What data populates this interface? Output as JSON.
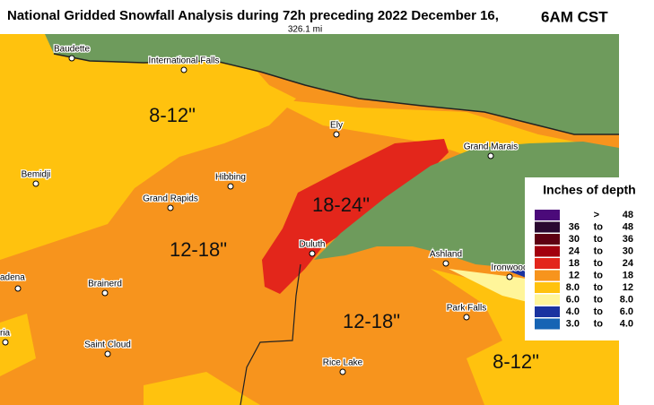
{
  "header": {
    "title": "National Gridded Snowfall Analysis during 72h preceding 2022 December 16,",
    "time": "6AM CST",
    "scale": "326.1 mi"
  },
  "cities": [
    "Baudette",
    "International Falls",
    "Ely",
    "Grand Marais",
    "Bemidji",
    "Hibbing",
    "Grand Rapids",
    "Duluth",
    "Ashland",
    "Ironwood",
    "adena",
    "Brainerd",
    "ria",
    "Park Falls",
    "Saint Cloud",
    "Rice Lake"
  ],
  "regions": [
    "8-12\"",
    "18-24\"",
    "12-18\"",
    "12-18\"",
    "8-12\""
  ],
  "legend": {
    "title": "Inches of depth",
    "rows": [
      {
        "parts": [
          ">",
          "48"
        ],
        "color": "#4b0a7a"
      },
      {
        "parts": [
          "36",
          "to",
          "48"
        ],
        "color": "#2a0830"
      },
      {
        "parts": [
          "30",
          "to",
          "36"
        ],
        "color": "#5e0012"
      },
      {
        "parts": [
          "24",
          "to",
          "30"
        ],
        "color": "#a2000e"
      },
      {
        "parts": [
          "18",
          "to",
          "24"
        ],
        "color": "#e3261b"
      },
      {
        "parts": [
          "12",
          "to",
          "18"
        ],
        "color": "#f7941d"
      },
      {
        "parts": [
          "8.0",
          "to",
          "12"
        ],
        "color": "#ffc20e"
      },
      {
        "parts": [
          "6.0",
          "to",
          "8.0"
        ],
        "color": "#fff59a"
      },
      {
        "parts": [
          "4.0",
          "to",
          "6.0"
        ],
        "color": "#1a33a0"
      },
      {
        "parts": [
          "3.0",
          "to",
          "4.0"
        ],
        "color": "#1664b4"
      }
    ]
  }
}
